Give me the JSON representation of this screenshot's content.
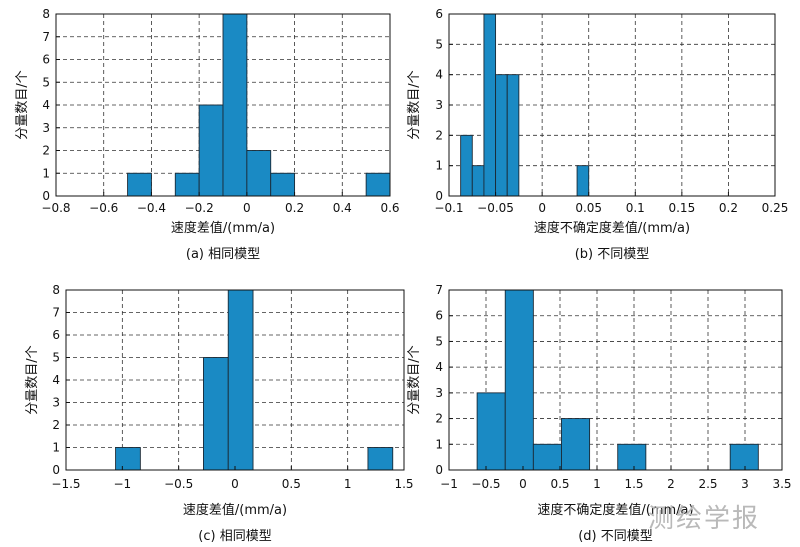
{
  "watermark": "测绘学报",
  "chart_data": [
    {
      "type": "bar",
      "title": "(a) 相同模型",
      "xlabel": "速度差值/(mm/a)",
      "ylabel": "分量数目/个",
      "xlim": [
        -0.8,
        0.6
      ],
      "ylim": [
        0,
        8
      ],
      "xticks": [
        -0.8,
        -0.6,
        -0.4,
        -0.2,
        0,
        0.2,
        0.4,
        0.6
      ],
      "xtick_labels": [
        "−0.8",
        "−0.6",
        "−0.4",
        "−0.2",
        "0",
        "0.2",
        "0.4",
        "0.6"
      ],
      "yticks": [
        0,
        1,
        2,
        3,
        4,
        5,
        6,
        7,
        8
      ],
      "ytick_labels": [
        "0",
        "1",
        "2",
        "3",
        "4",
        "5",
        "6",
        "7",
        "8"
      ],
      "bin_width": 0.1,
      "bins": [
        {
          "left": -0.5,
          "value": 1
        },
        {
          "left": -0.3,
          "value": 1
        },
        {
          "left": -0.2,
          "value": 4
        },
        {
          "left": -0.1,
          "value": 8
        },
        {
          "left": 0.0,
          "value": 2
        },
        {
          "left": 0.1,
          "value": 1
        },
        {
          "left": 0.5,
          "value": 1
        }
      ],
      "grid": true,
      "color": "#1a8ac4"
    },
    {
      "type": "bar",
      "title": "(b) 不同模型",
      "xlabel": "速度不确定度差值/(mm/a)",
      "ylabel": "分量数目/个",
      "xlim": [
        -0.1,
        0.25
      ],
      "ylim": [
        0,
        6
      ],
      "xticks": [
        -0.1,
        -0.05,
        0,
        0.05,
        0.1,
        0.15,
        0.2,
        0.25
      ],
      "xtick_labels": [
        "−0.1",
        "−0.05",
        "0",
        "0.05",
        "0.1",
        "0.15",
        "0.2",
        "0.25"
      ],
      "yticks": [
        0,
        1,
        2,
        3,
        4,
        5,
        6
      ],
      "ytick_labels": [
        "0",
        "1",
        "2",
        "3",
        "4",
        "5",
        "6"
      ],
      "bin_width": 0.0125,
      "bins": [
        {
          "left": -0.0875,
          "value": 2
        },
        {
          "left": -0.075,
          "value": 1
        },
        {
          "left": -0.0625,
          "value": 6
        },
        {
          "left": -0.05,
          "value": 4
        },
        {
          "left": -0.0375,
          "value": 4
        },
        {
          "left": 0.0375,
          "value": 1
        }
      ],
      "bins_note": "bins drawn to appear as in figure",
      "grid": true,
      "color": "#1a8ac4"
    },
    {
      "type": "bar",
      "title": "(c) 相同模型",
      "xlabel": "速度差值/(mm/a)",
      "ylabel": "分量数目/个",
      "xlim": [
        -1.5,
        1.5
      ],
      "ylim": [
        0,
        8
      ],
      "xticks": [
        -1.5,
        -1,
        -0.5,
        0,
        0.5,
        1,
        1.5
      ],
      "xtick_labels": [
        "−1.5",
        "−1",
        "−0.5",
        "0",
        "0.5",
        "1",
        "1.5"
      ],
      "yticks": [
        0,
        1,
        2,
        3,
        4,
        5,
        6,
        7,
        8
      ],
      "ytick_labels": [
        "0",
        "1",
        "2",
        "3",
        "4",
        "5",
        "6",
        "7",
        "8"
      ],
      "bin_width": 0.22,
      "bins": [
        {
          "left": -1.06,
          "value": 1
        },
        {
          "left": -0.28,
          "value": 5
        },
        {
          "left": -0.06,
          "value": 8
        },
        {
          "left": 1.18,
          "value": 1
        }
      ],
      "grid": true,
      "color": "#1a8ac4"
    },
    {
      "type": "bar",
      "title": "(d) 不同模型",
      "xlabel": "速度不确定度差值/(mm/a)",
      "ylabel": "分量数目/个",
      "xlim": [
        -1,
        3.5
      ],
      "ylim": [
        0,
        7
      ],
      "xticks": [
        -1,
        -0.5,
        0,
        0.5,
        1,
        1.5,
        2,
        2.5,
        3,
        3.5
      ],
      "xtick_labels": [
        "−1",
        "−0.5",
        "0",
        "0.5",
        "1",
        "1.5",
        "2",
        "2.5",
        "3",
        "3.5"
      ],
      "yticks": [
        0,
        1,
        2,
        3,
        4,
        5,
        6,
        7
      ],
      "ytick_labels": [
        "0",
        "1",
        "2",
        "3",
        "4",
        "5",
        "6",
        "7"
      ],
      "bin_width": 0.38,
      "bins": [
        {
          "left": -0.62,
          "value": 3
        },
        {
          "left": -0.24,
          "value": 7
        },
        {
          "left": 0.14,
          "value": 1
        },
        {
          "left": 0.52,
          "value": 2
        },
        {
          "left": 1.28,
          "value": 1
        },
        {
          "left": 2.8,
          "value": 1
        }
      ],
      "grid": true,
      "color": "#1a8ac4"
    }
  ]
}
